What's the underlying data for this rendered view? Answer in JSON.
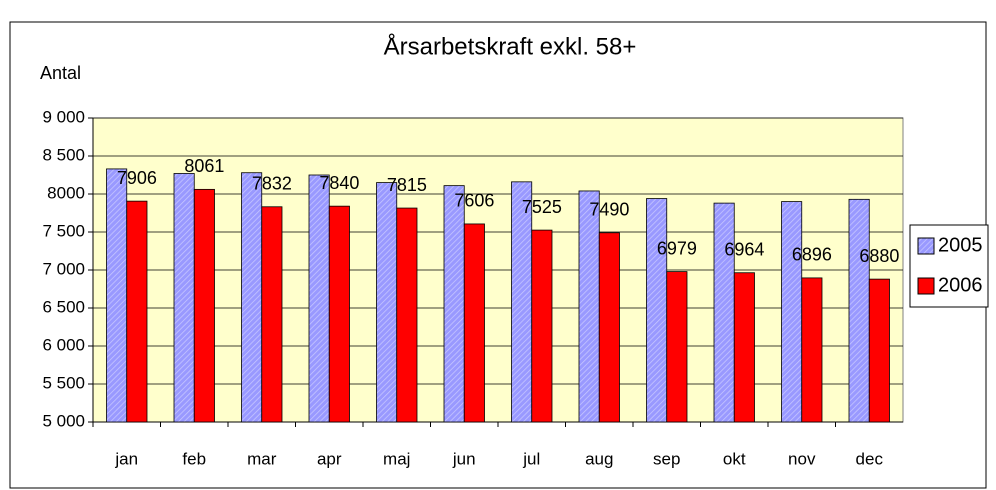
{
  "chart_data": {
    "type": "bar",
    "title": "Årsarbetskraft exkl. 58+",
    "y_label": "Antal",
    "categories": [
      "jan",
      "feb",
      "mar",
      "apr",
      "maj",
      "jun",
      "jul",
      "aug",
      "sep",
      "okt",
      "nov",
      "dec"
    ],
    "series": [
      {
        "name": "2005",
        "color": "#9999ff",
        "values": [
          8330,
          8270,
          8280,
          8250,
          8150,
          8110,
          8160,
          8040,
          7940,
          7880,
          7900,
          7930
        ]
      },
      {
        "name": "2006",
        "color": "#ff0000",
        "values": [
          7906,
          8061,
          7832,
          7840,
          7815,
          7606,
          7525,
          7490,
          6979,
          6964,
          6896,
          6880
        ],
        "data_labels": true
      }
    ],
    "ylim": [
      5000,
      9000
    ],
    "yticks": [
      {
        "value": 5000,
        "label": "5 000"
      },
      {
        "value": 5500,
        "label": "5 500"
      },
      {
        "value": 6000,
        "label": "6 000"
      },
      {
        "value": 6500,
        "label": "6 500"
      },
      {
        "value": 7000,
        "label": "7 000"
      },
      {
        "value": 7500,
        "label": "7 500"
      },
      {
        "value": 8000,
        "label": "8000"
      },
      {
        "value": 8500,
        "label": "8 500"
      },
      {
        "value": 9000,
        "label": "9 000"
      }
    ],
    "grid": true,
    "legend": "right",
    "plot_background": "#ffffcc"
  }
}
